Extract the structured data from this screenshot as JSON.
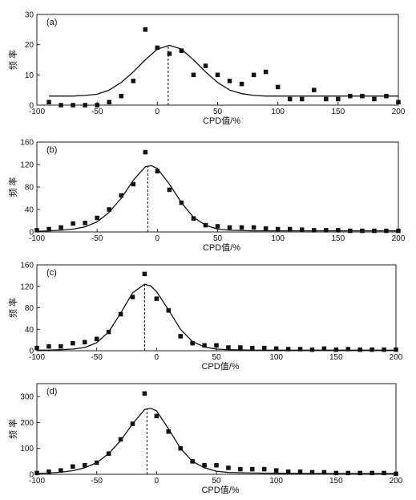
{
  "figure": {
    "ylabel": "频 率",
    "xlabel": "CPD值/%"
  },
  "chart_data": [
    {
      "type": "scatter",
      "panel_label": "(a)",
      "xlabel": "CPD值/%",
      "ylabel": "频 率",
      "xlim": [
        -100,
        200
      ],
      "ylim": [
        0,
        30
      ],
      "x_ticks": [
        -100,
        -50,
        0,
        50,
        100,
        150,
        200
      ],
      "y_ticks": [
        0,
        10,
        20,
        30
      ],
      "grid": false,
      "peak_x": 9,
      "series": [
        {
          "kind": "points",
          "marker": "square",
          "x": [
            -90,
            -80,
            -70,
            -60,
            -50,
            -40,
            -30,
            -20,
            -10,
            0,
            10,
            20,
            30,
            40,
            50,
            60,
            70,
            80,
            90,
            100,
            110,
            120,
            130,
            140,
            150,
            160,
            170,
            180,
            190,
            200
          ],
          "y": [
            1,
            0,
            0,
            0,
            0,
            1,
            3,
            8,
            25,
            19,
            17,
            18,
            10,
            13,
            10,
            8,
            7,
            10,
            11,
            6,
            2,
            2,
            5,
            2,
            2,
            3,
            3,
            2,
            3,
            1
          ]
        },
        {
          "kind": "fit",
          "x": [
            -90,
            -80,
            -70,
            -60,
            -50,
            -40,
            -30,
            -20,
            -10,
            0,
            10,
            20,
            30,
            40,
            50,
            60,
            70,
            80,
            90,
            100,
            110,
            120,
            130,
            140,
            150,
            160,
            170,
            180,
            190,
            200
          ],
          "y": [
            3,
            3,
            3,
            3.2,
            3.6,
            5,
            7.5,
            11,
            15,
            18.5,
            19.8,
            18.5,
            15,
            11,
            7.5,
            5,
            3.8,
            3.2,
            3,
            3,
            3,
            3,
            3,
            3,
            3,
            3,
            3,
            3,
            3,
            3
          ]
        }
      ]
    },
    {
      "type": "scatter",
      "panel_label": "(b)",
      "xlabel": "CPD值/%",
      "ylabel": "频 率",
      "xlim": [
        -100,
        200
      ],
      "ylim": [
        0,
        160
      ],
      "x_ticks": [
        -100,
        -50,
        0,
        50,
        100,
        150,
        200
      ],
      "y_ticks": [
        0,
        40,
        80,
        120,
        160
      ],
      "grid": false,
      "peak_x": -8,
      "series": [
        {
          "kind": "points",
          "marker": "square",
          "x": [
            -100,
            -90,
            -80,
            -70,
            -60,
            -50,
            -40,
            -30,
            -20,
            -10,
            0,
            10,
            20,
            30,
            40,
            50,
            60,
            70,
            80,
            90,
            100,
            110,
            120,
            130,
            140,
            150,
            160,
            170,
            180,
            190,
            200
          ],
          "y": [
            3,
            5,
            8,
            15,
            16,
            25,
            40,
            65,
            85,
            142,
            108,
            75,
            52,
            24,
            12,
            10,
            8,
            8,
            8,
            6,
            5,
            5,
            4,
            3,
            3,
            3,
            2,
            2,
            2,
            2,
            2
          ]
        },
        {
          "kind": "fit",
          "x": [
            -100,
            -90,
            -80,
            -70,
            -60,
            -50,
            -40,
            -30,
            -20,
            -10,
            -5,
            0,
            10,
            20,
            30,
            40,
            50,
            60,
            80,
            100,
            150,
            200
          ],
          "y": [
            1,
            2,
            3,
            5,
            9,
            18,
            35,
            60,
            92,
            116,
            118,
            113,
            85,
            52,
            26,
            12,
            5,
            3,
            2,
            2,
            2,
            2
          ]
        }
      ]
    },
    {
      "type": "scatter",
      "panel_label": "(c)",
      "xlabel": "CPD值/%",
      "ylabel": "频 率",
      "xlim": [
        -100,
        200
      ],
      "ylim": [
        0,
        160
      ],
      "x_ticks": [
        -100,
        -50,
        0,
        50,
        100,
        150,
        200
      ],
      "y_ticks": [
        0,
        40,
        80,
        120,
        160
      ],
      "grid": false,
      "peak_x": -10,
      "series": [
        {
          "kind": "points",
          "marker": "square",
          "x": [
            -100,
            -90,
            -80,
            -70,
            -60,
            -50,
            -40,
            -30,
            -20,
            -10,
            0,
            10,
            20,
            30,
            40,
            50,
            60,
            70,
            80,
            90,
            100,
            110,
            120,
            130,
            140,
            150,
            160,
            170,
            180,
            190,
            200
          ],
          "y": [
            5,
            8,
            8,
            14,
            16,
            22,
            35,
            68,
            100,
            143,
            97,
            75,
            27,
            14,
            10,
            10,
            6,
            6,
            5,
            5,
            4,
            3,
            3,
            2,
            4,
            2,
            3,
            2,
            2,
            2,
            2
          ]
        },
        {
          "kind": "fit",
          "x": [
            -100,
            -90,
            -80,
            -70,
            -60,
            -50,
            -40,
            -30,
            -20,
            -10,
            -5,
            0,
            10,
            20,
            30,
            40,
            50,
            60,
            80,
            100,
            150,
            200
          ],
          "y": [
            1,
            1,
            2,
            3,
            6,
            15,
            35,
            70,
            108,
            124,
            121,
            110,
            76,
            40,
            17,
            7,
            3,
            2,
            1,
            1,
            1,
            1
          ]
        }
      ]
    },
    {
      "type": "scatter",
      "panel_label": "(d)",
      "xlabel": "CPD值/%",
      "ylabel": "频 率",
      "xlim": [
        -100,
        200
      ],
      "ylim": [
        0,
        350
      ],
      "x_ticks": [
        -100,
        -50,
        0,
        50,
        100,
        150,
        200
      ],
      "y_ticks": [
        0,
        100,
        200,
        300
      ],
      "grid": false,
      "peak_x": -8,
      "series": [
        {
          "kind": "points",
          "marker": "square",
          "x": [
            -100,
            -90,
            -80,
            -70,
            -60,
            -50,
            -40,
            -30,
            -20,
            -10,
            0,
            10,
            20,
            30,
            40,
            50,
            60,
            70,
            80,
            90,
            100,
            110,
            120,
            130,
            140,
            150,
            160,
            170,
            180,
            190,
            200
          ],
          "y": [
            5,
            10,
            15,
            30,
            35,
            45,
            80,
            135,
            195,
            312,
            225,
            165,
            100,
            50,
            35,
            35,
            25,
            20,
            20,
            20,
            15,
            10,
            10,
            8,
            8,
            5,
            5,
            5,
            5,
            5,
            2
          ]
        },
        {
          "kind": "fit",
          "x": [
            -100,
            -90,
            -80,
            -70,
            -60,
            -50,
            -40,
            -30,
            -20,
            -10,
            -5,
            0,
            10,
            20,
            30,
            40,
            50,
            60,
            80,
            100,
            150,
            200
          ],
          "y": [
            3,
            5,
            8,
            14,
            25,
            45,
            80,
            130,
            195,
            250,
            255,
            245,
            175,
            100,
            50,
            25,
            12,
            7,
            5,
            4,
            3,
            3
          ]
        }
      ]
    }
  ]
}
